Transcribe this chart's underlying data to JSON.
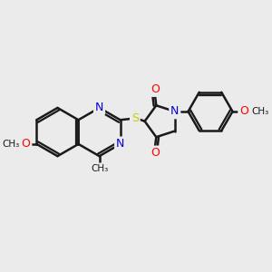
{
  "bg_color": "#ebebeb",
  "bond_color": "#1a1a1a",
  "bond_width": 1.8,
  "atom_colors": {
    "N": "#0000e0",
    "O": "#ff0000",
    "S": "#cccc00",
    "C": "#1a1a1a"
  },
  "font_size": 8.5,
  "figsize": [
    3.0,
    3.0
  ],
  "dpi": 100,
  "xlim": [
    -0.5,
    8.5
  ],
  "ylim": [
    -2.5,
    2.5
  ]
}
